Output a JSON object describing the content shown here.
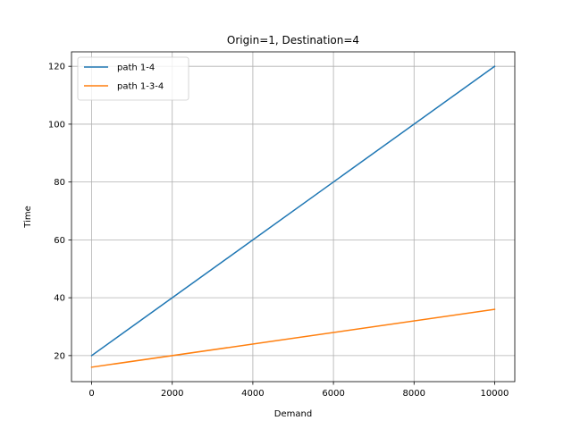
{
  "chart_data": {
    "type": "line",
    "title": "Origin=1, Destination=4",
    "xlabel": "Demand",
    "ylabel": "Time",
    "xlim": [
      -500,
      10500
    ],
    "ylim": [
      11,
      125
    ],
    "xticks": [
      0,
      2000,
      4000,
      6000,
      8000,
      10000
    ],
    "yticks": [
      20,
      40,
      60,
      80,
      100,
      120
    ],
    "grid": true,
    "legend_position": "top-left",
    "series": [
      {
        "name": "path 1-4",
        "color": "#1f77b4",
        "x": [
          0,
          10000
        ],
        "y": [
          20,
          120
        ]
      },
      {
        "name": "path 1-3-4",
        "color": "#ff7f0e",
        "x": [
          0,
          10000
        ],
        "y": [
          16,
          36
        ]
      }
    ]
  }
}
